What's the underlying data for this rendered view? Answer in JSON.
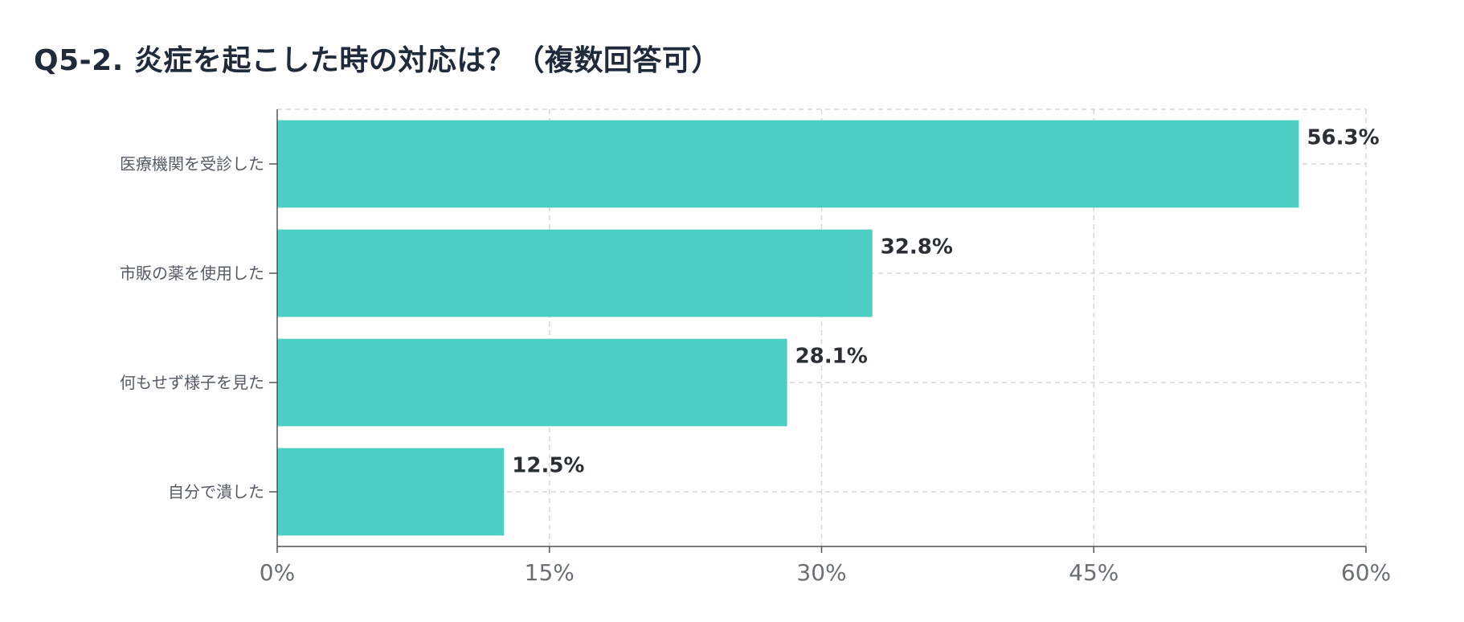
{
  "chart_data": {
    "type": "bar",
    "orientation": "horizontal",
    "title": "Q5-2. 炎症を起こした時の対応は？（複数回答可）",
    "categories": [
      "医療機関を受診した",
      "市販の薬を使用した",
      "何もせず様子を見た",
      "自分で潰した"
    ],
    "values": [
      56.3,
      32.8,
      28.1,
      12.5
    ],
    "data_labels": [
      "56.3%",
      "32.8%",
      "28.1%",
      "12.5%"
    ],
    "x_ticks": [
      0,
      15,
      30,
      45,
      60
    ],
    "x_tick_labels": [
      "0%",
      "15%",
      "30%",
      "45%",
      "60%"
    ],
    "xlim": [
      0,
      60
    ],
    "grid": true,
    "grid_style": "dashed",
    "legend": false,
    "bar_color": "#4ecdc4"
  }
}
